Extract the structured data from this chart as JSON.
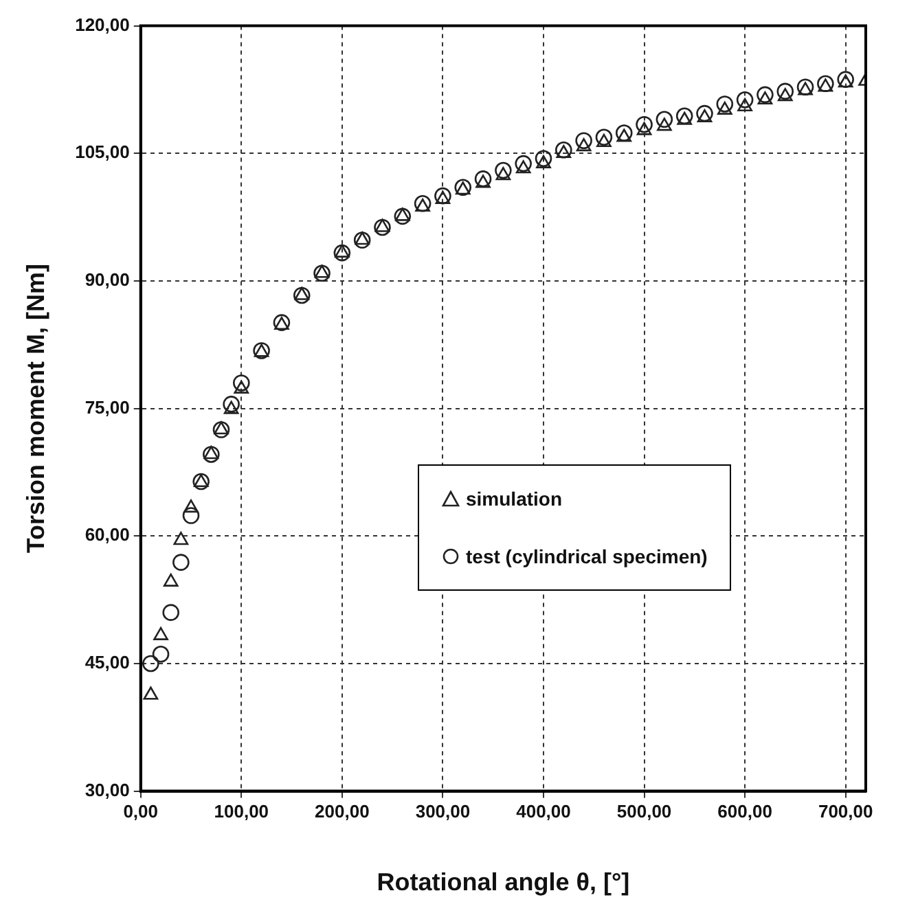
{
  "chart_data": {
    "type": "scatter",
    "xlabel": "Rotational angle θ, [°]",
    "ylabel": "Torsion moment M, [Nm]",
    "series": [
      {
        "name": "simulation",
        "color": "#222222",
        "marker": "triangle",
        "x": [
          10,
          20,
          30,
          40,
          50,
          60,
          70,
          80,
          90,
          100,
          120,
          140,
          160,
          180,
          200,
          220,
          240,
          260,
          280,
          300,
          320,
          340,
          360,
          380,
          400,
          420,
          440,
          460,
          480,
          500,
          520,
          540,
          560,
          580,
          600,
          620,
          640,
          660,
          680,
          700,
          720
        ],
        "values": [
          41.3,
          48.3,
          54.6,
          59.5,
          63.3,
          66.3,
          69.6,
          72.5,
          74.9,
          77.3,
          81.6,
          84.8,
          88.3,
          90.9,
          93.3,
          94.8,
          96.3,
          97.6,
          98.7,
          99.6,
          100.7,
          101.5,
          102.4,
          103.2,
          103.8,
          105.0,
          105.8,
          106.3,
          106.9,
          107.7,
          108.2,
          108.9,
          109.2,
          110.1,
          110.5,
          111.3,
          111.7,
          112.4,
          112.8,
          113.3,
          113.5
        ]
      },
      {
        "name": "test (cylindrical specimen)",
        "color": "#222222",
        "marker": "circle",
        "x": [
          10,
          20,
          30,
          40,
          50,
          60,
          70,
          80,
          90,
          100,
          120,
          140,
          160,
          180,
          200,
          220,
          240,
          260,
          280,
          300,
          320,
          340,
          360,
          380,
          400,
          420,
          440,
          460,
          480,
          500,
          520,
          540,
          560,
          580,
          600,
          620,
          640,
          660,
          680,
          700
        ],
        "values": [
          45.0,
          46.1,
          51.0,
          56.9,
          62.4,
          66.4,
          69.6,
          72.5,
          75.5,
          78.0,
          81.8,
          85.1,
          88.3,
          90.9,
          93.3,
          94.8,
          96.3,
          97.6,
          99.1,
          100.0,
          101.0,
          102.0,
          103.0,
          103.8,
          104.4,
          105.4,
          106.5,
          106.9,
          107.4,
          108.4,
          109.0,
          109.4,
          109.7,
          110.8,
          111.3,
          111.9,
          112.3,
          112.8,
          113.2,
          113.7
        ]
      }
    ],
    "xlim": [
      0,
      720
    ],
    "xticks": [
      {
        "value": 0,
        "label": "0,00"
      },
      {
        "value": 100,
        "label": "100,00"
      },
      {
        "value": 200,
        "label": "200,00"
      },
      {
        "value": 300,
        "label": "300,00"
      },
      {
        "value": 400,
        "label": "400,00"
      },
      {
        "value": 500,
        "label": "500,00"
      },
      {
        "value": 600,
        "label": "600,00"
      },
      {
        "value": 700,
        "label": "700,00"
      }
    ],
    "ylim": [
      30,
      120
    ],
    "yticks": [
      {
        "value": 30,
        "label": "30,00"
      },
      {
        "value": 45,
        "label": "45,00"
      },
      {
        "value": 60,
        "label": "60,00"
      },
      {
        "value": 75,
        "label": "75,00"
      },
      {
        "value": 90,
        "label": "90,00"
      },
      {
        "value": 105,
        "label": "105,00"
      },
      {
        "value": 120,
        "label": "120,00"
      }
    ],
    "grid": true,
    "legend": "bottom right"
  }
}
